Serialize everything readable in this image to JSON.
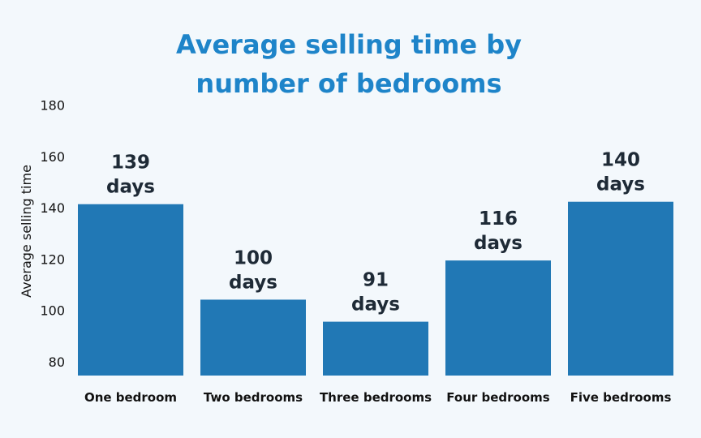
{
  "chart_data": {
    "type": "bar",
    "title_lines": [
      "Average selling time by",
      "number of bedrooms"
    ],
    "ylabel": "Average selling time",
    "xlabel": "",
    "categories": [
      "One bedroom",
      "Two bedrooms",
      "Three bedrooms",
      "Four bedrooms",
      "Five bedrooms"
    ],
    "values": [
      139,
      100,
      91,
      116,
      140
    ],
    "data_labels": [
      [
        "139",
        "days"
      ],
      [
        "100",
        "days"
      ],
      [
        "91",
        "days"
      ],
      [
        "116",
        "days"
      ],
      [
        "140",
        "days"
      ]
    ],
    "yticks": [
      "80",
      "100",
      "120",
      "140",
      "160",
      "180"
    ],
    "ylim": [
      80,
      180
    ],
    "grid": false,
    "bar_color": "#2178b5",
    "title_color": "#1e84c9",
    "background_color": "#f3f8fc"
  }
}
